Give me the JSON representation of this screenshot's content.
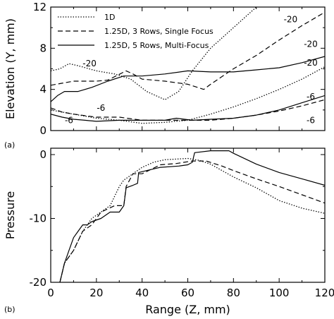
{
  "chart_data": [
    {
      "type": "line",
      "panel_label": "(a)",
      "ylabel": "Elevation (Y, mm)",
      "xlabel": "",
      "xlim": [
        0,
        120
      ],
      "ylim": [
        0,
        12
      ],
      "xticks": [],
      "yticks": [
        "0",
        "4",
        "8",
        "12"
      ],
      "ytick_values": [
        0,
        4,
        8,
        12
      ],
      "legend": {
        "placement": "top-left",
        "entries": [
          "1D",
          "1.25D, 3 Rows, Single Focus",
          "1.25D, 5 Rows, Multi-Focus"
        ]
      },
      "series": [
        {
          "name": "1D",
          "style": "dotted",
          "curves": [
            [
              [
                0,
                5.8
              ],
              [
                4,
                6.0
              ],
              [
                8,
                6.5
              ],
              [
                12,
                6.3
              ],
              [
                20,
                5.8
              ],
              [
                28,
                5.5
              ],
              [
                35,
                5.0
              ],
              [
                42,
                3.8
              ],
              [
                50,
                3.0
              ],
              [
                56,
                3.8
              ],
              [
                62,
                5.8
              ],
              [
                70,
                8.0
              ],
              [
                80,
                10.0
              ],
              [
                90,
                12.0
              ],
              [
                93,
                12.5
              ]
            ],
            [
              [
                0,
                2.0
              ],
              [
                5,
                1.8
              ],
              [
                10,
                1.6
              ],
              [
                20,
                1.2
              ],
              [
                30,
                1.0
              ],
              [
                40,
                0.7
              ],
              [
                50,
                0.8
              ],
              [
                60,
                1.0
              ],
              [
                70,
                1.6
              ],
              [
                80,
                2.3
              ],
              [
                90,
                3.1
              ],
              [
                100,
                4.0
              ],
              [
                110,
                5.0
              ],
              [
                120,
                6.2
              ]
            ]
          ]
        },
        {
          "name": "1.25D, 3 Rows, Single Focus",
          "style": "dashed",
          "curves": [
            [
              [
                0,
                4.4
              ],
              [
                5,
                4.6
              ],
              [
                10,
                4.8
              ],
              [
                20,
                4.8
              ],
              [
                25,
                4.9
              ],
              [
                33,
                5.8
              ],
              [
                36,
                5.5
              ],
              [
                40,
                5.0
              ],
              [
                50,
                4.8
              ],
              [
                60,
                4.5
              ],
              [
                67,
                4.0
              ],
              [
                70,
                4.5
              ],
              [
                80,
                6.0
              ],
              [
                90,
                7.3
              ],
              [
                100,
                8.8
              ],
              [
                110,
                10.2
              ],
              [
                120,
                11.5
              ]
            ],
            [
              [
                0,
                2.2
              ],
              [
                5,
                1.8
              ],
              [
                10,
                1.6
              ],
              [
                20,
                1.3
              ],
              [
                30,
                1.3
              ],
              [
                40,
                1.0
              ],
              [
                50,
                1.0
              ],
              [
                60,
                1.0
              ],
              [
                70,
                1.0
              ],
              [
                80,
                1.2
              ],
              [
                90,
                1.5
              ],
              [
                100,
                1.9
              ],
              [
                110,
                2.4
              ],
              [
                120,
                3.0
              ]
            ]
          ]
        },
        {
          "name": "1.25D, 5 Rows, Multi-Focus",
          "style": "solid",
          "curves": [
            [
              [
                0,
                2.8
              ],
              [
                3,
                3.4
              ],
              [
                6,
                3.8
              ],
              [
                12,
                3.8
              ],
              [
                18,
                4.2
              ],
              [
                25,
                4.8
              ],
              [
                32,
                5.3
              ],
              [
                40,
                5.3
              ],
              [
                50,
                5.5
              ],
              [
                60,
                5.8
              ],
              [
                70,
                5.7
              ],
              [
                80,
                5.7
              ],
              [
                90,
                5.9
              ],
              [
                100,
                6.1
              ],
              [
                110,
                6.6
              ],
              [
                120,
                7.2
              ]
            ],
            [
              [
                0,
                1.6
              ],
              [
                5,
                1.3
              ],
              [
                10,
                1.1
              ],
              [
                15,
                1.0
              ],
              [
                20,
                0.9
              ],
              [
                30,
                1.0
              ],
              [
                40,
                1.0
              ],
              [
                50,
                1.0
              ],
              [
                55,
                1.2
              ],
              [
                62,
                1.0
              ],
              [
                70,
                1.1
              ],
              [
                80,
                1.2
              ],
              [
                90,
                1.5
              ],
              [
                100,
                2.0
              ],
              [
                110,
                2.7
              ],
              [
                120,
                3.4
              ]
            ]
          ]
        }
      ],
      "annotations": [
        {
          "text": "-20",
          "x": 17,
          "y": 6.5
        },
        {
          "text": "-20",
          "x": 105,
          "y": 10.8
        },
        {
          "text": "-20",
          "x": 120,
          "y": 8.4
        },
        {
          "text": "-20",
          "x": 123,
          "y": 6.6
        },
        {
          "text": "-6",
          "x": 22,
          "y": 2.2
        },
        {
          "text": "-6",
          "x": 8,
          "y": 1.0
        },
        {
          "text": "-6",
          "x": 125,
          "y": 3.3
        },
        {
          "text": "-6",
          "x": 130,
          "y": 1.0
        }
      ]
    },
    {
      "type": "line",
      "panel_label": "(b)",
      "ylabel": "Pressure",
      "xlabel": "Range (Z, mm)",
      "xlim": [
        0,
        120
      ],
      "ylim": [
        -20,
        1
      ],
      "xticks": [
        "0",
        "20",
        "40",
        "60",
        "80",
        "100",
        "120"
      ],
      "xtick_values": [
        0,
        20,
        40,
        60,
        80,
        100,
        120
      ],
      "yticks": [
        "0",
        "-10",
        "-20"
      ],
      "ytick_values": [
        0,
        -10,
        -20
      ],
      "series": [
        {
          "name": "1D",
          "style": "dotted",
          "curves": [
            [
              [
                4,
                -20
              ],
              [
                6,
                -17
              ],
              [
                8,
                -16
              ],
              [
                10,
                -15
              ],
              [
                14,
                -12
              ],
              [
                18,
                -10
              ],
              [
                22,
                -9
              ],
              [
                26,
                -8
              ],
              [
                30,
                -5
              ],
              [
                32,
                -4
              ],
              [
                36,
                -3
              ],
              [
                40,
                -2
              ],
              [
                45,
                -1.2
              ],
              [
                50,
                -0.8
              ],
              [
                60,
                -0.6
              ],
              [
                65,
                -0.9
              ],
              [
                70,
                -1.5
              ],
              [
                80,
                -3.5
              ],
              [
                90,
                -5.2
              ],
              [
                100,
                -7.2
              ],
              [
                110,
                -8.4
              ],
              [
                120,
                -9.2
              ]
            ]
          ]
        },
        {
          "name": "1.25D, 3 Rows, Single Focus",
          "style": "dashed",
          "curves": [
            [
              [
                4,
                -20
              ],
              [
                6,
                -17
              ],
              [
                8,
                -16
              ],
              [
                10,
                -15
              ],
              [
                14,
                -12
              ],
              [
                18,
                -11
              ],
              [
                22,
                -9
              ],
              [
                28,
                -8
              ],
              [
                32,
                -8
              ],
              [
                33,
                -5
              ],
              [
                36,
                -3
              ],
              [
                40,
                -3
              ],
              [
                48,
                -1.6
              ],
              [
                55,
                -1.4
              ],
              [
                62,
                -1.0
              ],
              [
                68,
                -1.0
              ],
              [
                75,
                -1.8
              ],
              [
                80,
                -2.5
              ],
              [
                90,
                -3.8
              ],
              [
                100,
                -5.0
              ],
              [
                110,
                -6.3
              ],
              [
                120,
                -7.6
              ]
            ]
          ]
        },
        {
          "name": "1.25D, 5 Rows, Multi-Focus",
          "style": "solid",
          "curves": [
            [
              [
                4,
                -20
              ],
              [
                6,
                -17
              ],
              [
                8,
                -15
              ],
              [
                10,
                -13
              ],
              [
                12,
                -12
              ],
              [
                14,
                -11
              ],
              [
                16,
                -11
              ],
              [
                18,
                -10.5
              ],
              [
                22,
                -10
              ],
              [
                26,
                -9
              ],
              [
                30,
                -9
              ],
              [
                32,
                -8
              ],
              [
                33,
                -5.2
              ],
              [
                36,
                -4.8
              ],
              [
                38,
                -4.5
              ],
              [
                38.5,
                -2.8
              ],
              [
                42,
                -2.5
              ],
              [
                48,
                -2.0
              ],
              [
                56,
                -1.8
              ],
              [
                60,
                -1.6
              ],
              [
                62,
                -1.2
              ],
              [
                63,
                0.3
              ],
              [
                70,
                0.6
              ],
              [
                78,
                0.6
              ],
              [
                80,
                0.2
              ],
              [
                90,
                -1.5
              ],
              [
                100,
                -2.8
              ],
              [
                110,
                -3.8
              ],
              [
                120,
                -4.8
              ]
            ]
          ]
        }
      ]
    }
  ]
}
